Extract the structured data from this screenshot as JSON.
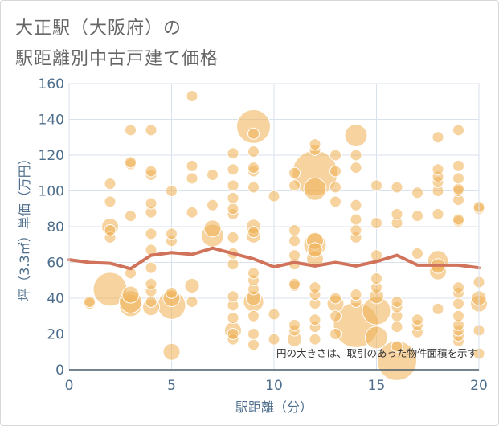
{
  "title_lines": [
    "大正駅（大阪府）の",
    "駅距離別中古戸建て価格"
  ],
  "chart_data": {
    "type": "scatter",
    "title": "大正駅（大阪府）の 駅距離別中古戸建て価格",
    "xlabel": "駅距離（分）",
    "ylabel": "坪（3.3㎡）単価（万円）",
    "xlim": [
      0,
      20
    ],
    "ylim": [
      0,
      160
    ],
    "xticks": [
      0,
      5,
      10,
      15,
      20
    ],
    "yticks": [
      0,
      20,
      40,
      60,
      80,
      100,
      120,
      140,
      160
    ],
    "grid": true,
    "annotation": "円の大きさは、取引のあった物件面積を示す",
    "colors": {
      "bubble": "#f0b35a",
      "bubble_edge": "#ffffff",
      "trend": "#d0735a",
      "grid": "#d9e2ec",
      "axis_text": "#4d6e8c"
    },
    "bubbles": [
      {
        "x": 1,
        "y": 37,
        "size": 1
      },
      {
        "x": 1,
        "y": 38,
        "size": 1
      },
      {
        "x": 2,
        "y": 45,
        "size": 3
      },
      {
        "x": 2,
        "y": 74,
        "size": 1
      },
      {
        "x": 2,
        "y": 78,
        "size": 1
      },
      {
        "x": 2,
        "y": 80,
        "size": 1.5
      },
      {
        "x": 2,
        "y": 94,
        "size": 1
      },
      {
        "x": 2,
        "y": 104,
        "size": 1
      },
      {
        "x": 3,
        "y": 36,
        "size": 2
      },
      {
        "x": 3,
        "y": 38,
        "size": 2
      },
      {
        "x": 3,
        "y": 42,
        "size": 1.5
      },
      {
        "x": 3,
        "y": 54,
        "size": 1
      },
      {
        "x": 3,
        "y": 86,
        "size": 1
      },
      {
        "x": 3,
        "y": 115,
        "size": 1
      },
      {
        "x": 3,
        "y": 116,
        "size": 1
      },
      {
        "x": 3,
        "y": 134,
        "size": 1
      },
      {
        "x": 4,
        "y": 35,
        "size": 1.5
      },
      {
        "x": 4,
        "y": 38,
        "size": 1
      },
      {
        "x": 4,
        "y": 44,
        "size": 1
      },
      {
        "x": 4,
        "y": 48,
        "size": 1
      },
      {
        "x": 4,
        "y": 57,
        "size": 1
      },
      {
        "x": 4,
        "y": 67,
        "size": 1
      },
      {
        "x": 4,
        "y": 76,
        "size": 1
      },
      {
        "x": 4,
        "y": 88,
        "size": 1
      },
      {
        "x": 4,
        "y": 93,
        "size": 1
      },
      {
        "x": 4,
        "y": 109,
        "size": 1
      },
      {
        "x": 4,
        "y": 111,
        "size": 1
      },
      {
        "x": 4,
        "y": 134,
        "size": 1
      },
      {
        "x": 5,
        "y": 10,
        "size": 1.5
      },
      {
        "x": 5,
        "y": 36,
        "size": 2.5
      },
      {
        "x": 5,
        "y": 40,
        "size": 1.5
      },
      {
        "x": 5,
        "y": 43,
        "size": 1
      },
      {
        "x": 5,
        "y": 72,
        "size": 1
      },
      {
        "x": 5,
        "y": 76,
        "size": 1
      },
      {
        "x": 5,
        "y": 100,
        "size": 1
      },
      {
        "x": 6,
        "y": 38,
        "size": 1
      },
      {
        "x": 6,
        "y": 47,
        "size": 1.3
      },
      {
        "x": 6,
        "y": 88,
        "size": 1
      },
      {
        "x": 6,
        "y": 107,
        "size": 1
      },
      {
        "x": 6,
        "y": 114,
        "size": 1
      },
      {
        "x": 6,
        "y": 153,
        "size": 1
      },
      {
        "x": 7,
        "y": 75,
        "size": 2
      },
      {
        "x": 7,
        "y": 79,
        "size": 1.5
      },
      {
        "x": 7,
        "y": 92,
        "size": 1
      },
      {
        "x": 7,
        "y": 109,
        "size": 1
      },
      {
        "x": 8,
        "y": 17,
        "size": 1
      },
      {
        "x": 8,
        "y": 20,
        "size": 1
      },
      {
        "x": 8,
        "y": 22,
        "size": 1.5
      },
      {
        "x": 8,
        "y": 29,
        "size": 1
      },
      {
        "x": 8,
        "y": 36,
        "size": 1
      },
      {
        "x": 8,
        "y": 41,
        "size": 1
      },
      {
        "x": 8,
        "y": 59,
        "size": 1
      },
      {
        "x": 8,
        "y": 65,
        "size": 1
      },
      {
        "x": 8,
        "y": 74,
        "size": 1
      },
      {
        "x": 8,
        "y": 87,
        "size": 1
      },
      {
        "x": 8,
        "y": 90,
        "size": 1
      },
      {
        "x": 8,
        "y": 96,
        "size": 1
      },
      {
        "x": 8,
        "y": 103,
        "size": 1
      },
      {
        "x": 8,
        "y": 112,
        "size": 1
      },
      {
        "x": 8,
        "y": 121,
        "size": 1
      },
      {
        "x": 9,
        "y": 14,
        "size": 1
      },
      {
        "x": 9,
        "y": 20,
        "size": 1
      },
      {
        "x": 9,
        "y": 30,
        "size": 1
      },
      {
        "x": 9,
        "y": 38,
        "size": 1.8
      },
      {
        "x": 9,
        "y": 40,
        "size": 1.3
      },
      {
        "x": 9,
        "y": 45,
        "size": 1
      },
      {
        "x": 9,
        "y": 50,
        "size": 1
      },
      {
        "x": 9,
        "y": 54,
        "size": 1
      },
      {
        "x": 9,
        "y": 75,
        "size": 1.3
      },
      {
        "x": 9,
        "y": 77,
        "size": 1
      },
      {
        "x": 9,
        "y": 80,
        "size": 1.3
      },
      {
        "x": 9,
        "y": 102,
        "size": 1
      },
      {
        "x": 9,
        "y": 111,
        "size": 1
      },
      {
        "x": 9,
        "y": 113,
        "size": 1
      },
      {
        "x": 9,
        "y": 122,
        "size": 1
      },
      {
        "x": 9,
        "y": 132,
        "size": 1
      },
      {
        "x": 9,
        "y": 136,
        "size": 3
      },
      {
        "x": 10,
        "y": 17,
        "size": 1
      },
      {
        "x": 10,
        "y": 31,
        "size": 1
      },
      {
        "x": 10,
        "y": 97,
        "size": 1
      },
      {
        "x": 11,
        "y": 17,
        "size": 1.3
      },
      {
        "x": 11,
        "y": 22,
        "size": 1
      },
      {
        "x": 11,
        "y": 25,
        "size": 1
      },
      {
        "x": 11,
        "y": 47,
        "size": 1
      },
      {
        "x": 11,
        "y": 48,
        "size": 1
      },
      {
        "x": 11,
        "y": 59,
        "size": 1
      },
      {
        "x": 11,
        "y": 64,
        "size": 1
      },
      {
        "x": 11,
        "y": 72,
        "size": 1
      },
      {
        "x": 11,
        "y": 78,
        "size": 1
      },
      {
        "x": 11,
        "y": 103,
        "size": 1
      },
      {
        "x": 11,
        "y": 110,
        "size": 1
      },
      {
        "x": 12,
        "y": 17,
        "size": 1
      },
      {
        "x": 12,
        "y": 24,
        "size": 1
      },
      {
        "x": 12,
        "y": 28,
        "size": 1
      },
      {
        "x": 12,
        "y": 37,
        "size": 1
      },
      {
        "x": 12,
        "y": 42,
        "size": 1
      },
      {
        "x": 12,
        "y": 46,
        "size": 1
      },
      {
        "x": 12,
        "y": 62,
        "size": 1.5
      },
      {
        "x": 12,
        "y": 67,
        "size": 1.3
      },
      {
        "x": 12,
        "y": 70,
        "size": 2
      },
      {
        "x": 12,
        "y": 72,
        "size": 1.5
      },
      {
        "x": 12,
        "y": 101,
        "size": 2
      },
      {
        "x": 12,
        "y": 110,
        "size": 4
      },
      {
        "x": 12,
        "y": 123,
        "size": 1
      },
      {
        "x": 12,
        "y": 126,
        "size": 1
      },
      {
        "x": 13,
        "y": 20,
        "size": 1
      },
      {
        "x": 13,
        "y": 30,
        "size": 1
      },
      {
        "x": 13,
        "y": 37,
        "size": 1.5
      },
      {
        "x": 13,
        "y": 40,
        "size": 1
      },
      {
        "x": 13,
        "y": 94,
        "size": 1
      },
      {
        "x": 13,
        "y": 102,
        "size": 1
      },
      {
        "x": 13,
        "y": 111,
        "size": 1
      },
      {
        "x": 13,
        "y": 120,
        "size": 1
      },
      {
        "x": 14,
        "y": 25,
        "size": 4
      },
      {
        "x": 14,
        "y": 38,
        "size": 1
      },
      {
        "x": 14,
        "y": 42,
        "size": 1
      },
      {
        "x": 14,
        "y": 74,
        "size": 1
      },
      {
        "x": 14,
        "y": 78,
        "size": 1
      },
      {
        "x": 14,
        "y": 84,
        "size": 1
      },
      {
        "x": 14,
        "y": 92,
        "size": 1
      },
      {
        "x": 14,
        "y": 113,
        "size": 1
      },
      {
        "x": 14,
        "y": 120,
        "size": 1
      },
      {
        "x": 14,
        "y": 131,
        "size": 2
      },
      {
        "x": 15,
        "y": 18,
        "size": 2
      },
      {
        "x": 15,
        "y": 33,
        "size": 2.5
      },
      {
        "x": 15,
        "y": 41,
        "size": 1.3
      },
      {
        "x": 15,
        "y": 46,
        "size": 1
      },
      {
        "x": 15,
        "y": 51,
        "size": 1
      },
      {
        "x": 15,
        "y": 64,
        "size": 1
      },
      {
        "x": 15,
        "y": 82,
        "size": 1
      },
      {
        "x": 15,
        "y": 103,
        "size": 1
      },
      {
        "x": 16,
        "y": 5,
        "size": 3.5
      },
      {
        "x": 16,
        "y": 13,
        "size": 1
      },
      {
        "x": 16,
        "y": 24,
        "size": 1
      },
      {
        "x": 16,
        "y": 30,
        "size": 1
      },
      {
        "x": 16,
        "y": 35,
        "size": 1
      },
      {
        "x": 16,
        "y": 38,
        "size": 1
      },
      {
        "x": 16,
        "y": 82,
        "size": 1
      },
      {
        "x": 16,
        "y": 87,
        "size": 1
      },
      {
        "x": 16,
        "y": 102,
        "size": 1
      },
      {
        "x": 17,
        "y": 21,
        "size": 1
      },
      {
        "x": 17,
        "y": 25,
        "size": 1
      },
      {
        "x": 17,
        "y": 28,
        "size": 1
      },
      {
        "x": 17,
        "y": 65,
        "size": 1
      },
      {
        "x": 17,
        "y": 86,
        "size": 1
      },
      {
        "x": 17,
        "y": 99,
        "size": 1
      },
      {
        "x": 18,
        "y": 34,
        "size": 1
      },
      {
        "x": 18,
        "y": 55,
        "size": 1.5
      },
      {
        "x": 18,
        "y": 58,
        "size": 1.3
      },
      {
        "x": 18,
        "y": 61,
        "size": 1.8
      },
      {
        "x": 18,
        "y": 87,
        "size": 1
      },
      {
        "x": 18,
        "y": 100,
        "size": 1
      },
      {
        "x": 18,
        "y": 105,
        "size": 1
      },
      {
        "x": 18,
        "y": 108,
        "size": 1
      },
      {
        "x": 18,
        "y": 112,
        "size": 1
      },
      {
        "x": 18,
        "y": 130,
        "size": 1
      },
      {
        "x": 19,
        "y": 16,
        "size": 1
      },
      {
        "x": 19,
        "y": 19,
        "size": 1
      },
      {
        "x": 19,
        "y": 22,
        "size": 1
      },
      {
        "x": 19,
        "y": 25,
        "size": 1
      },
      {
        "x": 19,
        "y": 30,
        "size": 1
      },
      {
        "x": 19,
        "y": 37,
        "size": 1
      },
      {
        "x": 19,
        "y": 43,
        "size": 1
      },
      {
        "x": 19,
        "y": 46,
        "size": 1
      },
      {
        "x": 19,
        "y": 83,
        "size": 1
      },
      {
        "x": 19,
        "y": 84,
        "size": 1
      },
      {
        "x": 19,
        "y": 95,
        "size": 1
      },
      {
        "x": 19,
        "y": 100,
        "size": 1
      },
      {
        "x": 19,
        "y": 101,
        "size": 1
      },
      {
        "x": 19,
        "y": 107,
        "size": 1
      },
      {
        "x": 19,
        "y": 114,
        "size": 1
      },
      {
        "x": 19,
        "y": 134,
        "size": 1
      },
      {
        "x": 20,
        "y": 9,
        "size": 1
      },
      {
        "x": 20,
        "y": 22,
        "size": 1
      },
      {
        "x": 20,
        "y": 37,
        "size": 1.5
      },
      {
        "x": 20,
        "y": 40,
        "size": 1.3
      },
      {
        "x": 20,
        "y": 49,
        "size": 1
      },
      {
        "x": 20,
        "y": 90,
        "size": 1
      },
      {
        "x": 20,
        "y": 91,
        "size": 1
      }
    ],
    "trend": {
      "x": [
        0,
        1,
        2,
        3,
        4,
        5,
        6,
        7,
        8,
        9,
        10,
        11,
        12,
        13,
        14,
        15,
        16,
        17,
        18,
        19,
        20
      ],
      "y": [
        61.5,
        60,
        59.5,
        56.5,
        64,
        65.5,
        64.5,
        68,
        65,
        62,
        57.5,
        60,
        58,
        60,
        58,
        60.5,
        64,
        58.5,
        58.5,
        58.5,
        57
      ]
    }
  }
}
